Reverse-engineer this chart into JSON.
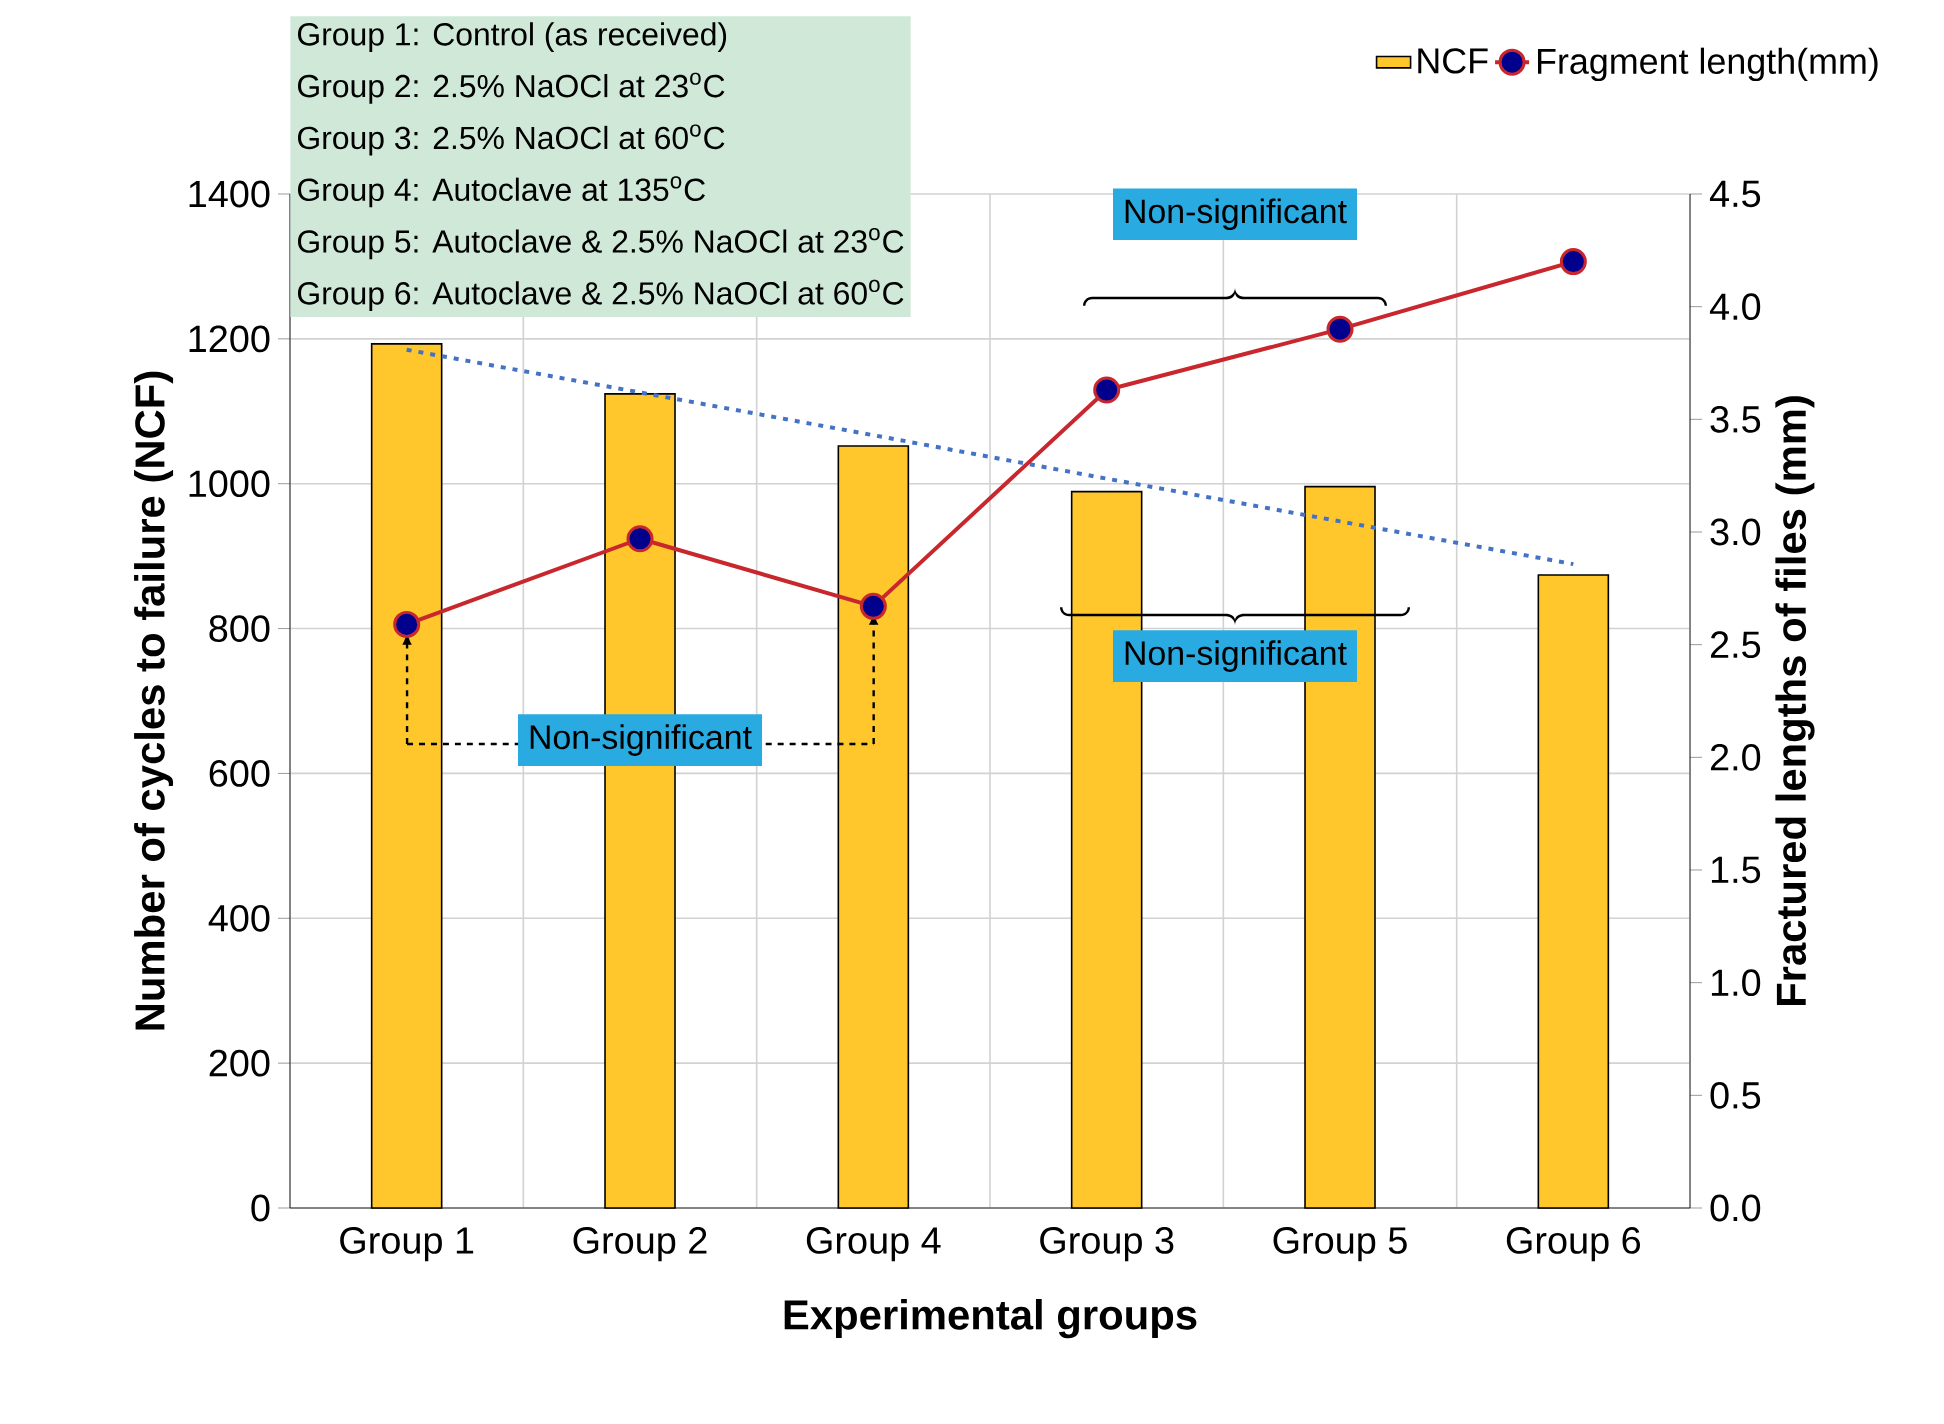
{
  "chart_data": {
    "type": "bar",
    "xlabel": "Experimental groups",
    "ylabel": "Number of cycles to failure (NCF)",
    "y2label": "Fractured lengths of files (mm)",
    "categories": [
      "Group 1",
      "Group 2",
      "Group 4",
      "Group 3",
      "Group 5",
      "Group 6"
    ],
    "series": [
      {
        "name": "NCF",
        "type": "bar",
        "color": "#ffc72c",
        "values": [
          1193,
          1124,
          1052,
          989,
          996,
          874
        ]
      },
      {
        "name": "Fragment length(mm)",
        "type": "line",
        "axis": "y2",
        "color": "#c8282d",
        "marker": "circle",
        "values": [
          2.59,
          2.97,
          2.67,
          3.63,
          3.9,
          4.2
        ]
      },
      {
        "type": "line",
        "color": "#4472c4",
        "line_style": "dotted",
        "marker": "none",
        "values": [
          1185,
          1126,
          1067,
          1007,
          948,
          889
        ]
      }
    ],
    "ylim": [
      0,
      1400
    ],
    "yticks": [
      0,
      200,
      400,
      600,
      800,
      1000,
      1200,
      1400
    ],
    "y2lim": [
      0,
      4.5
    ],
    "y2ticks": [
      {
        "value": 0,
        "label": "0.0"
      },
      0.5,
      {
        "value": 1,
        "label": "1.0"
      },
      1.5,
      {
        "value": 2,
        "label": "2.0"
      },
      2.5,
      {
        "value": 3,
        "label": "3.0"
      },
      3.5,
      {
        "value": 4,
        "label": "4.0"
      },
      4.5
    ],
    "grid": true,
    "legend": "top right",
    "annotations": [
      "Group 1: Control (as received)",
      "Group 2: 2.5% NaOCl at 23$^{o}$C",
      "Group 3: 2.5% NaOCl at 60$^{o}$C",
      "Group 4: Autoclave at 135$^{o}$C",
      "Group 5: Autoclave & 2.5% NaOCl at 23$^{o}$C",
      "Group 6: Autoclave & 2.5% NaOCl at 60$^{o}$C",
      "Non-significant",
      "Non-significant",
      "Non-significant"
    ]
  }
}
